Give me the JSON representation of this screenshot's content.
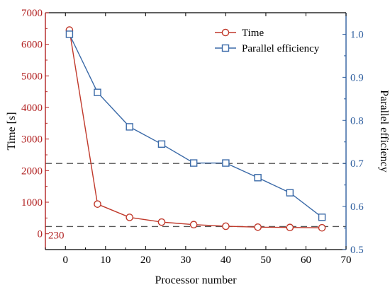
{
  "chart_data": {
    "type": "line",
    "xlabel": "Processor number",
    "ylabel_left": "Time [s]",
    "ylabel_right": "Parallel efficiency",
    "xlim": [
      -5,
      70
    ],
    "xticks": [
      0,
      10,
      20,
      30,
      40,
      50,
      60,
      70
    ],
    "ylim_left": [
      -500,
      7000
    ],
    "yticks_left": [
      0,
      1000,
      2000,
      3000,
      4000,
      5000,
      6000,
      7000
    ],
    "ylim_right": [
      0.5,
      1.05
    ],
    "yticks_right": [
      0.5,
      0.6,
      0.7,
      0.8,
      0.9,
      1.0
    ],
    "left_axis_color": "#b22222",
    "right_axis_color": "#2f5f9f",
    "series": [
      {
        "name": "Time",
        "axis": "left",
        "color": "#c0392b",
        "marker": "circle",
        "x": [
          1,
          8,
          16,
          24,
          32,
          40,
          48,
          56,
          64
        ],
        "y": [
          6450,
          940,
          520,
          370,
          290,
          240,
          210,
          200,
          190
        ]
      },
      {
        "name": "Parallel efficiency",
        "axis": "right",
        "color": "#3b6aa8",
        "marker": "square",
        "x": [
          1,
          8,
          16,
          24,
          32,
          40,
          48,
          56,
          64
        ],
        "y": [
          1.0,
          0.865,
          0.785,
          0.745,
          0.701,
          0.701,
          0.667,
          0.632,
          0.575
        ]
      }
    ],
    "reference_lines": [
      {
        "axis": "right",
        "value": 0.7,
        "style": "dashed",
        "color": "#555555"
      },
      {
        "axis": "left",
        "value": 230,
        "style": "dashed",
        "color": "#555555",
        "label": "230"
      }
    ],
    "legend": {
      "position": "top-right",
      "entries": [
        "Time",
        "Parallel efficiency"
      ]
    },
    "grid": false
  }
}
